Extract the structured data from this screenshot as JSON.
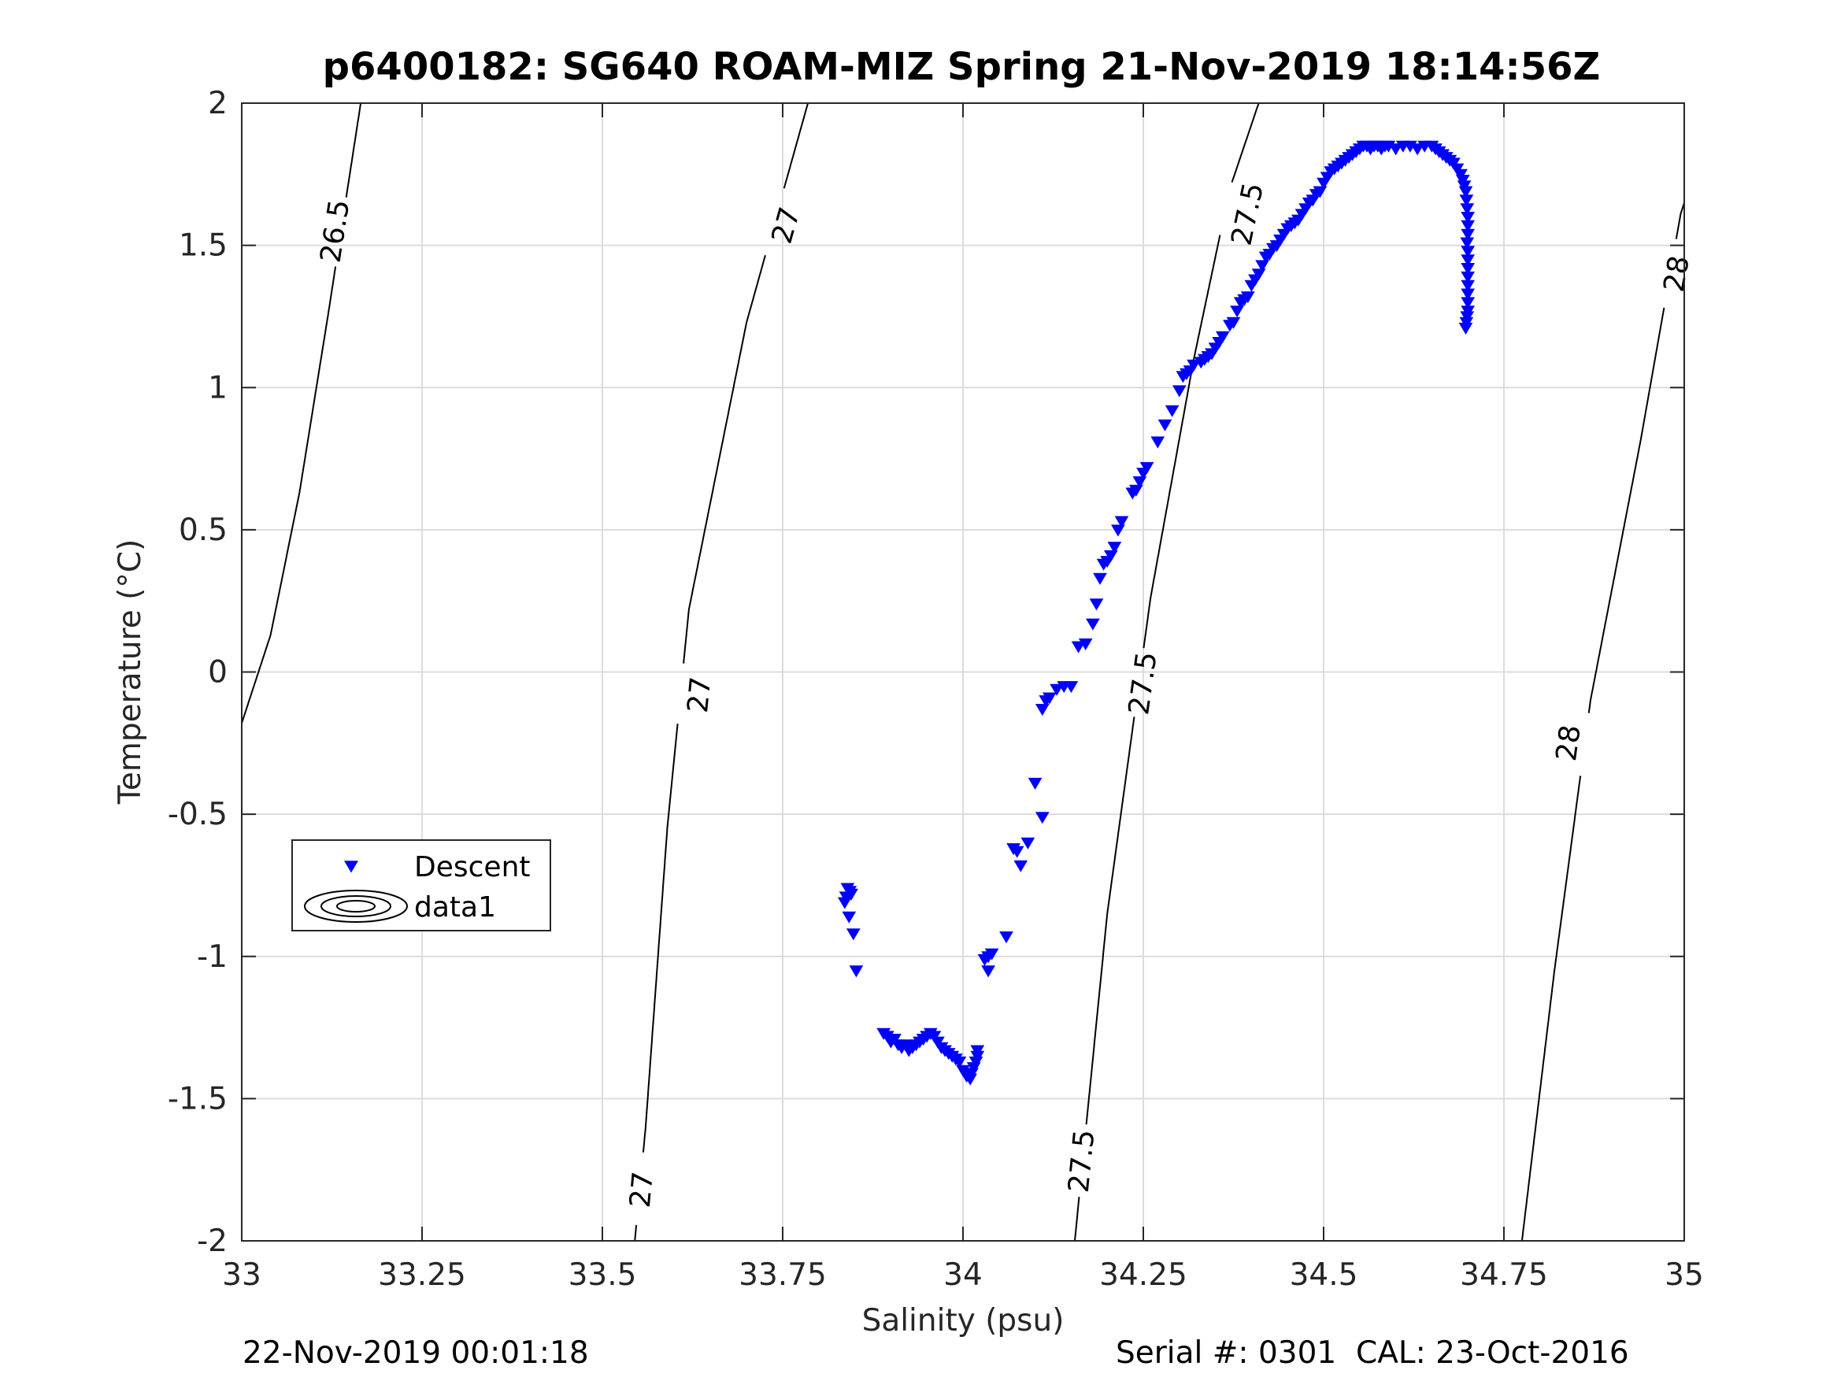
{
  "chart_data": {
    "type": "scatter",
    "title": "p6400182: SG640 ROAM-MIZ Spring 21-Nov-2019 18:14:56Z",
    "xlabel": "Salinity (psu)",
    "ylabel": "Temperature (°C)",
    "xlim": [
      33,
      35
    ],
    "ylim": [
      -2,
      2
    ],
    "xticks": [
      "33",
      "33.25",
      "33.5",
      "33.75",
      "34",
      "34.25",
      "34.5",
      "34.75",
      "35"
    ],
    "yticks": [
      "2",
      "1.5",
      "1",
      "0.5",
      "0",
      "-0.5",
      "-1",
      "-1.5",
      "-2"
    ],
    "grid": true,
    "legend_position": "lower-left",
    "legend": [
      {
        "label": "Descent",
        "marker": "triangle-down",
        "color": "#0000ff"
      },
      {
        "label": "data1",
        "marker": "contour",
        "color": "#000000"
      }
    ],
    "series": [
      {
        "name": "Descent",
        "color": "#0000ff",
        "marker": "triangle-down",
        "points": [
          [
            33.84,
            -0.76
          ],
          [
            33.843,
            -0.77
          ],
          [
            33.838,
            -0.79
          ],
          [
            33.845,
            -0.78
          ],
          [
            33.836,
            -0.81
          ],
          [
            33.842,
            -0.86
          ],
          [
            33.848,
            -0.92
          ],
          [
            33.852,
            -1.05
          ],
          [
            33.89,
            -1.27
          ],
          [
            33.895,
            -1.28
          ],
          [
            33.9,
            -1.3
          ],
          [
            33.905,
            -1.29
          ],
          [
            33.91,
            -1.31
          ],
          [
            33.915,
            -1.32
          ],
          [
            33.92,
            -1.31
          ],
          [
            33.925,
            -1.33
          ],
          [
            33.93,
            -1.32
          ],
          [
            33.935,
            -1.31
          ],
          [
            33.94,
            -1.3
          ],
          [
            33.945,
            -1.29
          ],
          [
            33.95,
            -1.28
          ],
          [
            33.955,
            -1.27
          ],
          [
            33.96,
            -1.28
          ],
          [
            33.965,
            -1.3
          ],
          [
            33.97,
            -1.32
          ],
          [
            33.975,
            -1.33
          ],
          [
            33.98,
            -1.34
          ],
          [
            33.985,
            -1.35
          ],
          [
            33.99,
            -1.36
          ],
          [
            33.995,
            -1.37
          ],
          [
            34.0,
            -1.4
          ],
          [
            34.005,
            -1.42
          ],
          [
            34.01,
            -1.43
          ],
          [
            34.012,
            -1.41
          ],
          [
            34.015,
            -1.39
          ],
          [
            34.018,
            -1.37
          ],
          [
            34.02,
            -1.35
          ],
          [
            34.02,
            -1.33
          ],
          [
            34.03,
            -1.01
          ],
          [
            34.035,
            -1.0
          ],
          [
            34.04,
            -0.99
          ],
          [
            34.035,
            -1.05
          ],
          [
            34.06,
            -0.93
          ],
          [
            34.07,
            -0.62
          ],
          [
            34.075,
            -0.63
          ],
          [
            34.08,
            -0.68
          ],
          [
            34.09,
            -0.6
          ],
          [
            34.1,
            -0.39
          ],
          [
            34.11,
            -0.51
          ],
          [
            34.11,
            -0.13
          ],
          [
            34.115,
            -0.1
          ],
          [
            34.12,
            -0.09
          ],
          [
            34.13,
            -0.06
          ],
          [
            34.14,
            -0.05
          ],
          [
            34.15,
            -0.05
          ],
          [
            34.16,
            0.09
          ],
          [
            34.17,
            0.1
          ],
          [
            34.18,
            0.17
          ],
          [
            34.185,
            0.24
          ],
          [
            34.19,
            0.33
          ],
          [
            34.195,
            0.38
          ],
          [
            34.2,
            0.39
          ],
          [
            34.205,
            0.41
          ],
          [
            34.21,
            0.44
          ],
          [
            34.215,
            0.5
          ],
          [
            34.22,
            0.53
          ],
          [
            34.235,
            0.63
          ],
          [
            34.24,
            0.64
          ],
          [
            34.245,
            0.67
          ],
          [
            34.25,
            0.7
          ],
          [
            34.255,
            0.72
          ],
          [
            34.27,
            0.81
          ],
          [
            34.28,
            0.87
          ],
          [
            34.29,
            0.92
          ],
          [
            34.3,
            0.99
          ],
          [
            34.305,
            1.04
          ],
          [
            34.31,
            1.05
          ],
          [
            34.315,
            1.06
          ],
          [
            34.32,
            1.08
          ],
          [
            34.33,
            1.09
          ],
          [
            34.335,
            1.1
          ],
          [
            34.34,
            1.11
          ],
          [
            34.345,
            1.12
          ],
          [
            34.35,
            1.14
          ],
          [
            34.355,
            1.16
          ],
          [
            34.36,
            1.18
          ],
          [
            34.37,
            1.22
          ],
          [
            34.375,
            1.23
          ],
          [
            34.38,
            1.27
          ],
          [
            34.385,
            1.3
          ],
          [
            34.39,
            1.31
          ],
          [
            34.395,
            1.32
          ],
          [
            34.4,
            1.36
          ],
          [
            34.405,
            1.38
          ],
          [
            34.41,
            1.4
          ],
          [
            34.415,
            1.43
          ],
          [
            34.42,
            1.46
          ],
          [
            34.425,
            1.47
          ],
          [
            34.43,
            1.49
          ],
          [
            34.435,
            1.5
          ],
          [
            34.44,
            1.52
          ],
          [
            34.445,
            1.54
          ],
          [
            34.45,
            1.56
          ],
          [
            34.455,
            1.57
          ],
          [
            34.46,
            1.58
          ],
          [
            34.465,
            1.59
          ],
          [
            34.47,
            1.61
          ],
          [
            34.475,
            1.63
          ],
          [
            34.48,
            1.65
          ],
          [
            34.485,
            1.66
          ],
          [
            34.49,
            1.68
          ],
          [
            34.495,
            1.69
          ],
          [
            34.5,
            1.72
          ],
          [
            34.505,
            1.74
          ],
          [
            34.51,
            1.76
          ],
          [
            34.515,
            1.77
          ],
          [
            34.52,
            1.78
          ],
          [
            34.525,
            1.79
          ],
          [
            34.53,
            1.8
          ],
          [
            34.535,
            1.81
          ],
          [
            34.54,
            1.82
          ],
          [
            34.545,
            1.83
          ],
          [
            34.55,
            1.84
          ],
          [
            34.555,
            1.85
          ],
          [
            34.56,
            1.85
          ],
          [
            34.565,
            1.84
          ],
          [
            34.57,
            1.85
          ],
          [
            34.575,
            1.85
          ],
          [
            34.58,
            1.84
          ],
          [
            34.585,
            1.85
          ],
          [
            34.59,
            1.85
          ],
          [
            34.6,
            1.84
          ],
          [
            34.61,
            1.85
          ],
          [
            34.62,
            1.85
          ],
          [
            34.63,
            1.84
          ],
          [
            34.64,
            1.85
          ],
          [
            34.65,
            1.85
          ],
          [
            34.655,
            1.84
          ],
          [
            34.66,
            1.83
          ],
          [
            34.665,
            1.82
          ],
          [
            34.67,
            1.81
          ],
          [
            34.675,
            1.8
          ],
          [
            34.68,
            1.79
          ],
          [
            34.685,
            1.77
          ],
          [
            34.69,
            1.75
          ],
          [
            34.693,
            1.73
          ],
          [
            34.695,
            1.71
          ],
          [
            34.697,
            1.69
          ],
          [
            34.698,
            1.66
          ],
          [
            34.699,
            1.63
          ],
          [
            34.7,
            1.6
          ],
          [
            34.7,
            1.57
          ],
          [
            34.7,
            1.54
          ],
          [
            34.699,
            1.51
          ],
          [
            34.7,
            1.48
          ],
          [
            34.7,
            1.45
          ],
          [
            34.7,
            1.42
          ],
          [
            34.7,
            1.39
          ],
          [
            34.7,
            1.36
          ],
          [
            34.7,
            1.33
          ],
          [
            34.7,
            1.3
          ],
          [
            34.7,
            1.27
          ],
          [
            34.699,
            1.25
          ],
          [
            34.698,
            1.23
          ],
          [
            34.697,
            1.21
          ]
        ]
      },
      {
        "name": "data1",
        "type": "contour",
        "color": "#000000",
        "lines": [
          {
            "label": "26.5",
            "points": [
              [
                33.0,
                -0.18
              ],
              [
                33.04,
                0.13
              ],
              [
                33.08,
                0.63
              ],
              [
                33.12,
                1.26
              ],
              [
                33.165,
                2.0
              ]
            ],
            "label_positions": [
              [
                33.13,
                1.55
              ]
            ]
          },
          {
            "label": "27",
            "points": [
              [
                33.545,
                -2.0
              ],
              [
                33.56,
                -1.6
              ],
              [
                33.59,
                -0.55
              ],
              [
                33.62,
                0.22
              ],
              [
                33.7,
                1.23
              ],
              [
                33.785,
                2.0
              ]
            ],
            "label_positions": [
              [
                33.555,
                -1.82
              ],
              [
                33.635,
                -0.08
              ],
              [
                33.755,
                1.57
              ]
            ]
          },
          {
            "label": "27.5",
            "points": [
              [
                34.155,
                -2.0
              ],
              [
                34.2,
                -0.85
              ],
              [
                34.26,
                0.26
              ],
              [
                34.32,
                1.1
              ],
              [
                34.37,
                1.7
              ],
              [
                34.41,
                2.0
              ]
            ],
            "label_positions": [
              [
                34.165,
                -1.72
              ],
              [
                34.25,
                -0.04
              ],
              [
                34.395,
                1.61
              ]
            ]
          },
          {
            "label": "28",
            "points": [
              [
                34.775,
                -2.0
              ],
              [
                34.82,
                -1.05
              ],
              [
                34.87,
                -0.1
              ],
              [
                34.94,
                0.82
              ],
              [
                34.995,
                1.61
              ],
              [
                35.0,
                1.65
              ]
            ],
            "label_positions": [
              [
                34.84,
                -0.25
              ],
              [
                34.99,
                1.4
              ]
            ]
          }
        ]
      }
    ]
  },
  "footer": {
    "timestamp": "22-Nov-2019 00:01:18",
    "serial": "Serial #: 0301  CAL: 23-Oct-2016"
  }
}
